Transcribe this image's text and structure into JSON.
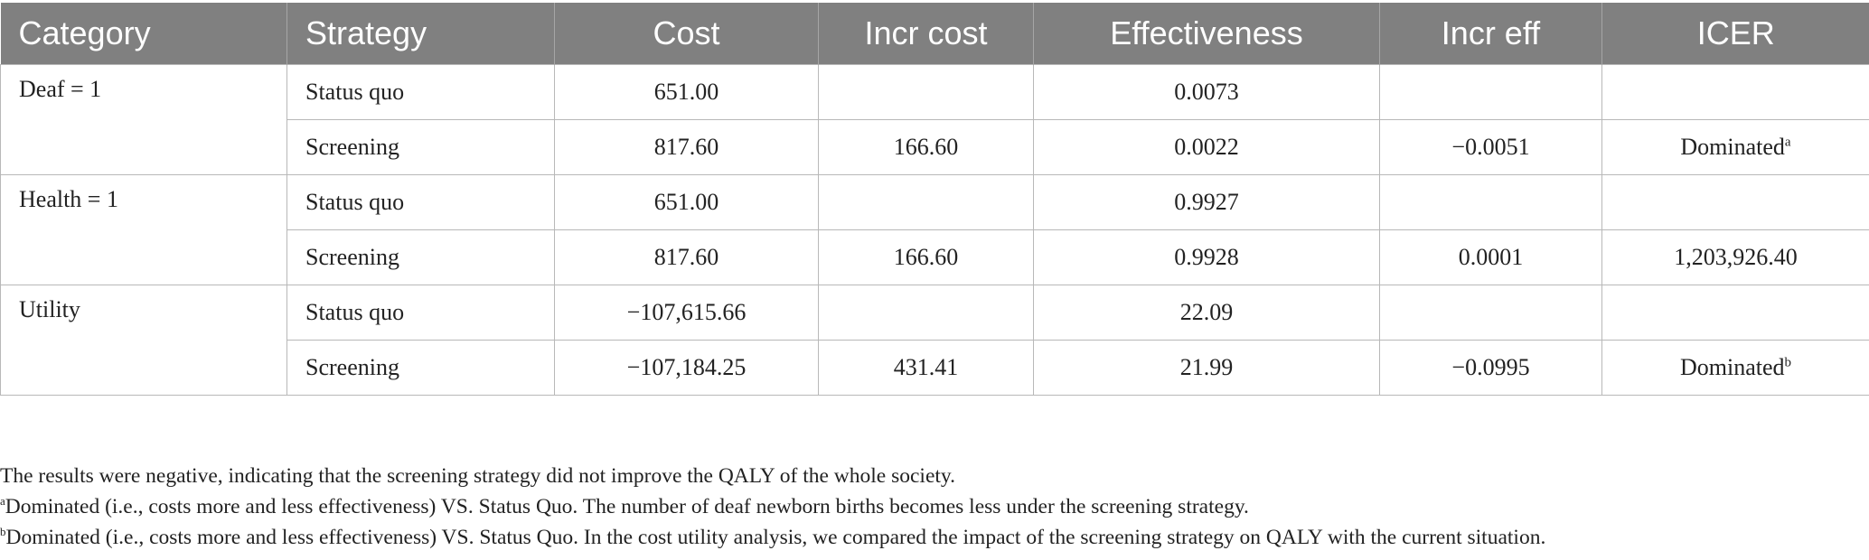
{
  "headers": [
    "Category",
    "Strategy",
    "Cost",
    "Incr cost",
    "Effectiveness",
    "Incr eff",
    "ICER"
  ],
  "groups": [
    {
      "category": "Deaf = 1",
      "rows": [
        {
          "strategy": "Status quo",
          "cost": "651.00",
          "incr_cost": "",
          "effectiveness": "0.0073",
          "incr_eff": "",
          "icer": "",
          "icer_note": ""
        },
        {
          "strategy": "Screening",
          "cost": "817.60",
          "incr_cost": "166.60",
          "effectiveness": "0.0022",
          "incr_eff": "−0.0051",
          "icer": "Dominated",
          "icer_note": "a"
        }
      ]
    },
    {
      "category": "Health = 1",
      "rows": [
        {
          "strategy": "Status quo",
          "cost": "651.00",
          "incr_cost": "",
          "effectiveness": "0.9927",
          "incr_eff": "",
          "icer": "",
          "icer_note": ""
        },
        {
          "strategy": "Screening",
          "cost": "817.60",
          "incr_cost": "166.60",
          "effectiveness": "0.9928",
          "incr_eff": "0.0001",
          "icer": "1,203,926.40",
          "icer_note": ""
        }
      ]
    },
    {
      "category": "Utility",
      "rows": [
        {
          "strategy": "Status quo",
          "cost": "−107,615.66",
          "incr_cost": "",
          "effectiveness": "22.09",
          "incr_eff": "",
          "icer": "",
          "icer_note": ""
        },
        {
          "strategy": "Screening",
          "cost": "−107,184.25",
          "incr_cost": "431.41",
          "effectiveness": "21.99",
          "incr_eff": "−0.0995",
          "icer": "Dominated",
          "icer_note": "b"
        }
      ]
    }
  ],
  "notes": {
    "general": "The results were negative, indicating that the screening strategy did not improve the QALY of the whole society.",
    "a_marker": "a",
    "a_text": "Dominated (i.e., costs more and less effectiveness) VS. Status Quo. The number of deaf newborn births becomes less under the screening strategy.",
    "b_marker": "b",
    "b_text": "Dominated (i.e., costs more and less effectiveness) VS. Status Quo. In the cost utility analysis, we compared the impact of the screening strategy on QALY with the current situation."
  },
  "colors": {
    "header_bg": "#808080",
    "header_text": "#ffffff",
    "grid_line": "#b8b8b8",
    "body_text": "#222222"
  }
}
